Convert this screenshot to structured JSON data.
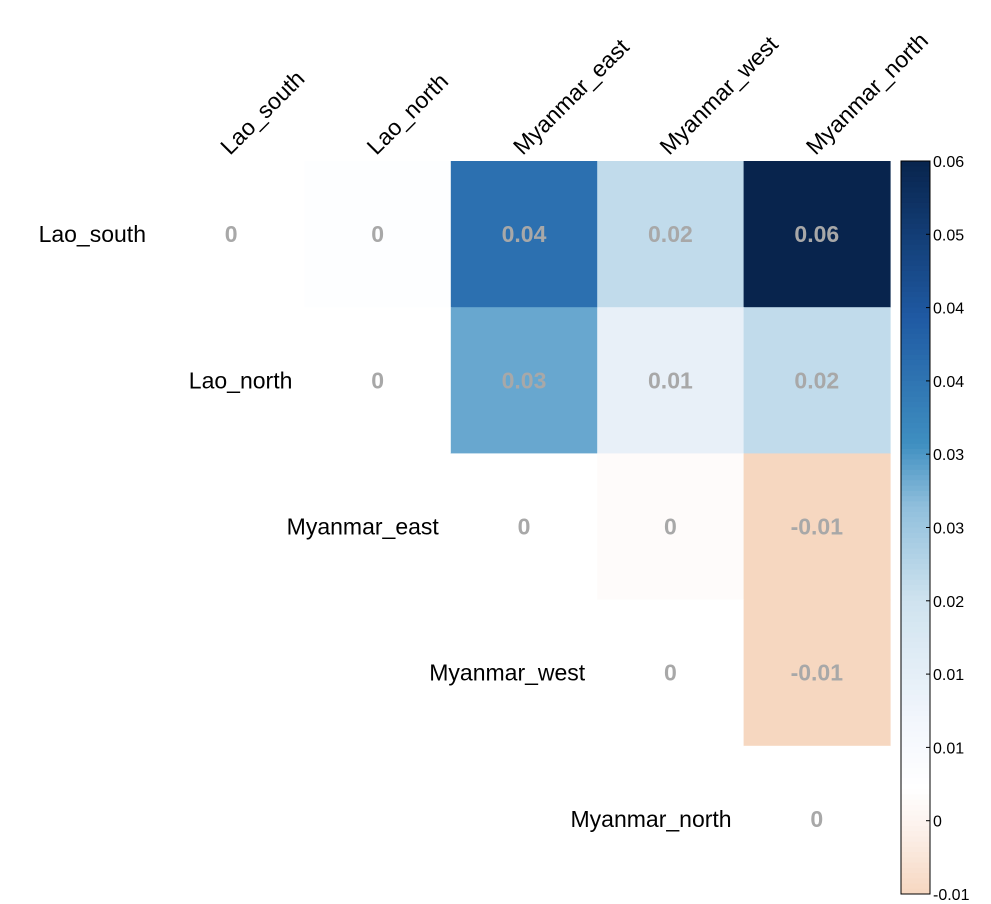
{
  "chart_data": {
    "type": "heatmap",
    "layout": "upper-triangle",
    "rows": [
      "Lao_south",
      "Lao_north",
      "Myanmar_east",
      "Myanmar_west",
      "Myanmar_north"
    ],
    "cols": [
      "Lao_south",
      "Lao_north",
      "Myanmar_east",
      "Myanmar_west",
      "Myanmar_north"
    ],
    "cells": [
      {
        "row": "Lao_south",
        "col": "Lao_south",
        "value": 0,
        "label": "0"
      },
      {
        "row": "Lao_south",
        "col": "Lao_north",
        "value": 0.001,
        "label": "0"
      },
      {
        "row": "Lao_south",
        "col": "Myanmar_east",
        "value": 0.04,
        "label": "0.04"
      },
      {
        "row": "Lao_south",
        "col": "Myanmar_west",
        "value": 0.02,
        "label": "0.02"
      },
      {
        "row": "Lao_south",
        "col": "Myanmar_north",
        "value": 0.06,
        "label": "0.06"
      },
      {
        "row": "Lao_north",
        "col": "Lao_north",
        "value": 0,
        "label": "0"
      },
      {
        "row": "Lao_north",
        "col": "Myanmar_east",
        "value": 0.03,
        "label": "0.03"
      },
      {
        "row": "Lao_north",
        "col": "Myanmar_west",
        "value": 0.01,
        "label": "0.01"
      },
      {
        "row": "Lao_north",
        "col": "Myanmar_north",
        "value": 0.02,
        "label": "0.02"
      },
      {
        "row": "Myanmar_east",
        "col": "Myanmar_east",
        "value": 0,
        "label": "0"
      },
      {
        "row": "Myanmar_east",
        "col": "Myanmar_west",
        "value": -0.001,
        "label": "0"
      },
      {
        "row": "Myanmar_east",
        "col": "Myanmar_north",
        "value": -0.01,
        "label": "-0.01"
      },
      {
        "row": "Myanmar_west",
        "col": "Myanmar_west",
        "value": 0,
        "label": "0"
      },
      {
        "row": "Myanmar_west",
        "col": "Myanmar_north",
        "value": -0.01,
        "label": "-0.01"
      },
      {
        "row": "Myanmar_north",
        "col": "Myanmar_north",
        "value": 0,
        "label": "0"
      }
    ],
    "colorbar": {
      "range": [
        -0.01,
        0.06
      ],
      "ticks": [
        "0.06",
        "0.05",
        "0.04",
        "0.04",
        "0.03",
        "0.03",
        "0.02",
        "0.01",
        "0.01",
        "0",
        "-0.01"
      ],
      "colors": {
        "negative": "#f6d7c0",
        "zero": "#ffffff",
        "positive": "#08244d"
      }
    },
    "title": "",
    "xlabel": "",
    "ylabel": ""
  }
}
